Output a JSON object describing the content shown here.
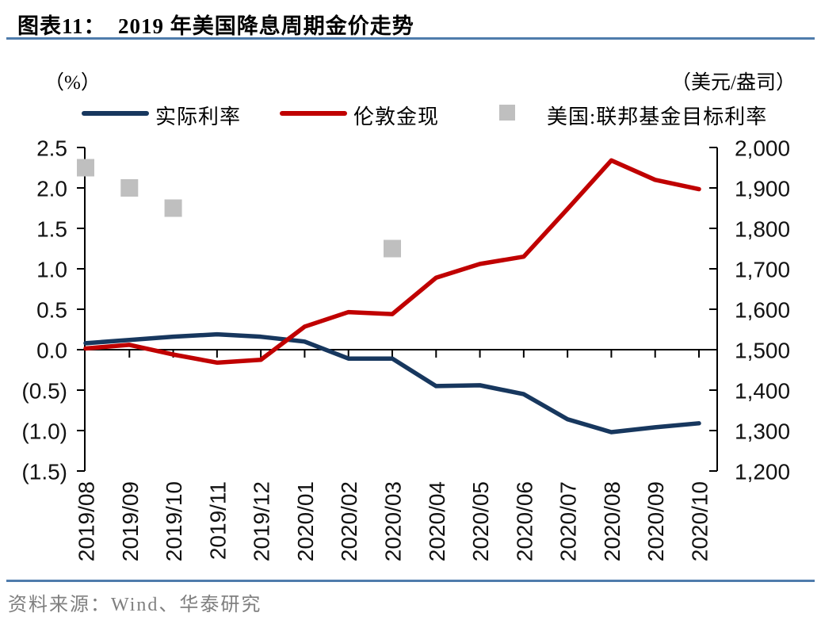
{
  "page": {
    "title": "图表11：  2019 年美国降息周期金价走势",
    "source": "资料来源：Wind、华泰研究"
  },
  "colors": {
    "navy": "#17375E",
    "red": "#C00000",
    "gray": "#BFBFBF",
    "divider_blue": "#4F7CAC",
    "source_gray": "#7F7F7F",
    "axis": "#000000"
  },
  "chart_data": {
    "type": "line",
    "title": "2019 年美国降息周期金价走势",
    "left_unit": "（%）",
    "right_unit": "（美元/盎司）",
    "legend_position": "top",
    "grid": false,
    "categories": [
      "2019/08",
      "2019/09",
      "2019/10",
      "2019/11",
      "2019/12",
      "2020/01",
      "2020/02",
      "2020/03",
      "2020/04",
      "2020/05",
      "2020/06",
      "2020/07",
      "2020/08",
      "2020/09",
      "2020/10"
    ],
    "series": [
      {
        "name": "实际利率",
        "type": "line",
        "axis": "left",
        "color": "#17375E",
        "values": [
          0.08,
          0.12,
          0.16,
          0.19,
          0.16,
          0.1,
          -0.11,
          -0.11,
          -0.45,
          -0.44,
          -0.55,
          -0.86,
          -1.02,
          -0.96,
          -0.91
        ]
      },
      {
        "name": "伦敦金现",
        "type": "line",
        "axis": "right",
        "color": "#C00000",
        "values": [
          1503,
          1512,
          1488,
          1468,
          1475,
          1557,
          1593,
          1588,
          1678,
          1712,
          1730,
          1848,
          1968,
          1920,
          1897
        ]
      },
      {
        "name": "美国:联邦基金目标利率",
        "type": "scatter",
        "axis": "left",
        "color": "#BFBFBF",
        "marker": "square",
        "points": [
          {
            "category": "2019/08",
            "value": 2.25
          },
          {
            "category": "2019/09",
            "value": 2.0
          },
          {
            "category": "2019/10",
            "value": 1.75
          },
          {
            "category": "2020/03",
            "value": 1.25
          }
        ]
      }
    ],
    "left_axis": {
      "ticks": [
        "2.5",
        "2.0",
        "1.5",
        "1.0",
        "0.5",
        "0.0",
        "(0.5)",
        "(1.0)",
        "(1.5)"
      ],
      "values": [
        2.5,
        2.0,
        1.5,
        1.0,
        0.5,
        0.0,
        -0.5,
        -1.0,
        -1.5
      ],
      "range": [
        -1.5,
        2.5
      ]
    },
    "right_axis": {
      "ticks": [
        "2,000",
        "1,900",
        "1,800",
        "1,700",
        "1,600",
        "1,500",
        "1,400",
        "1,300",
        "1,200"
      ],
      "values": [
        2000,
        1900,
        1800,
        1700,
        1600,
        1500,
        1400,
        1300,
        1200
      ],
      "range": [
        1200,
        2000
      ]
    }
  }
}
